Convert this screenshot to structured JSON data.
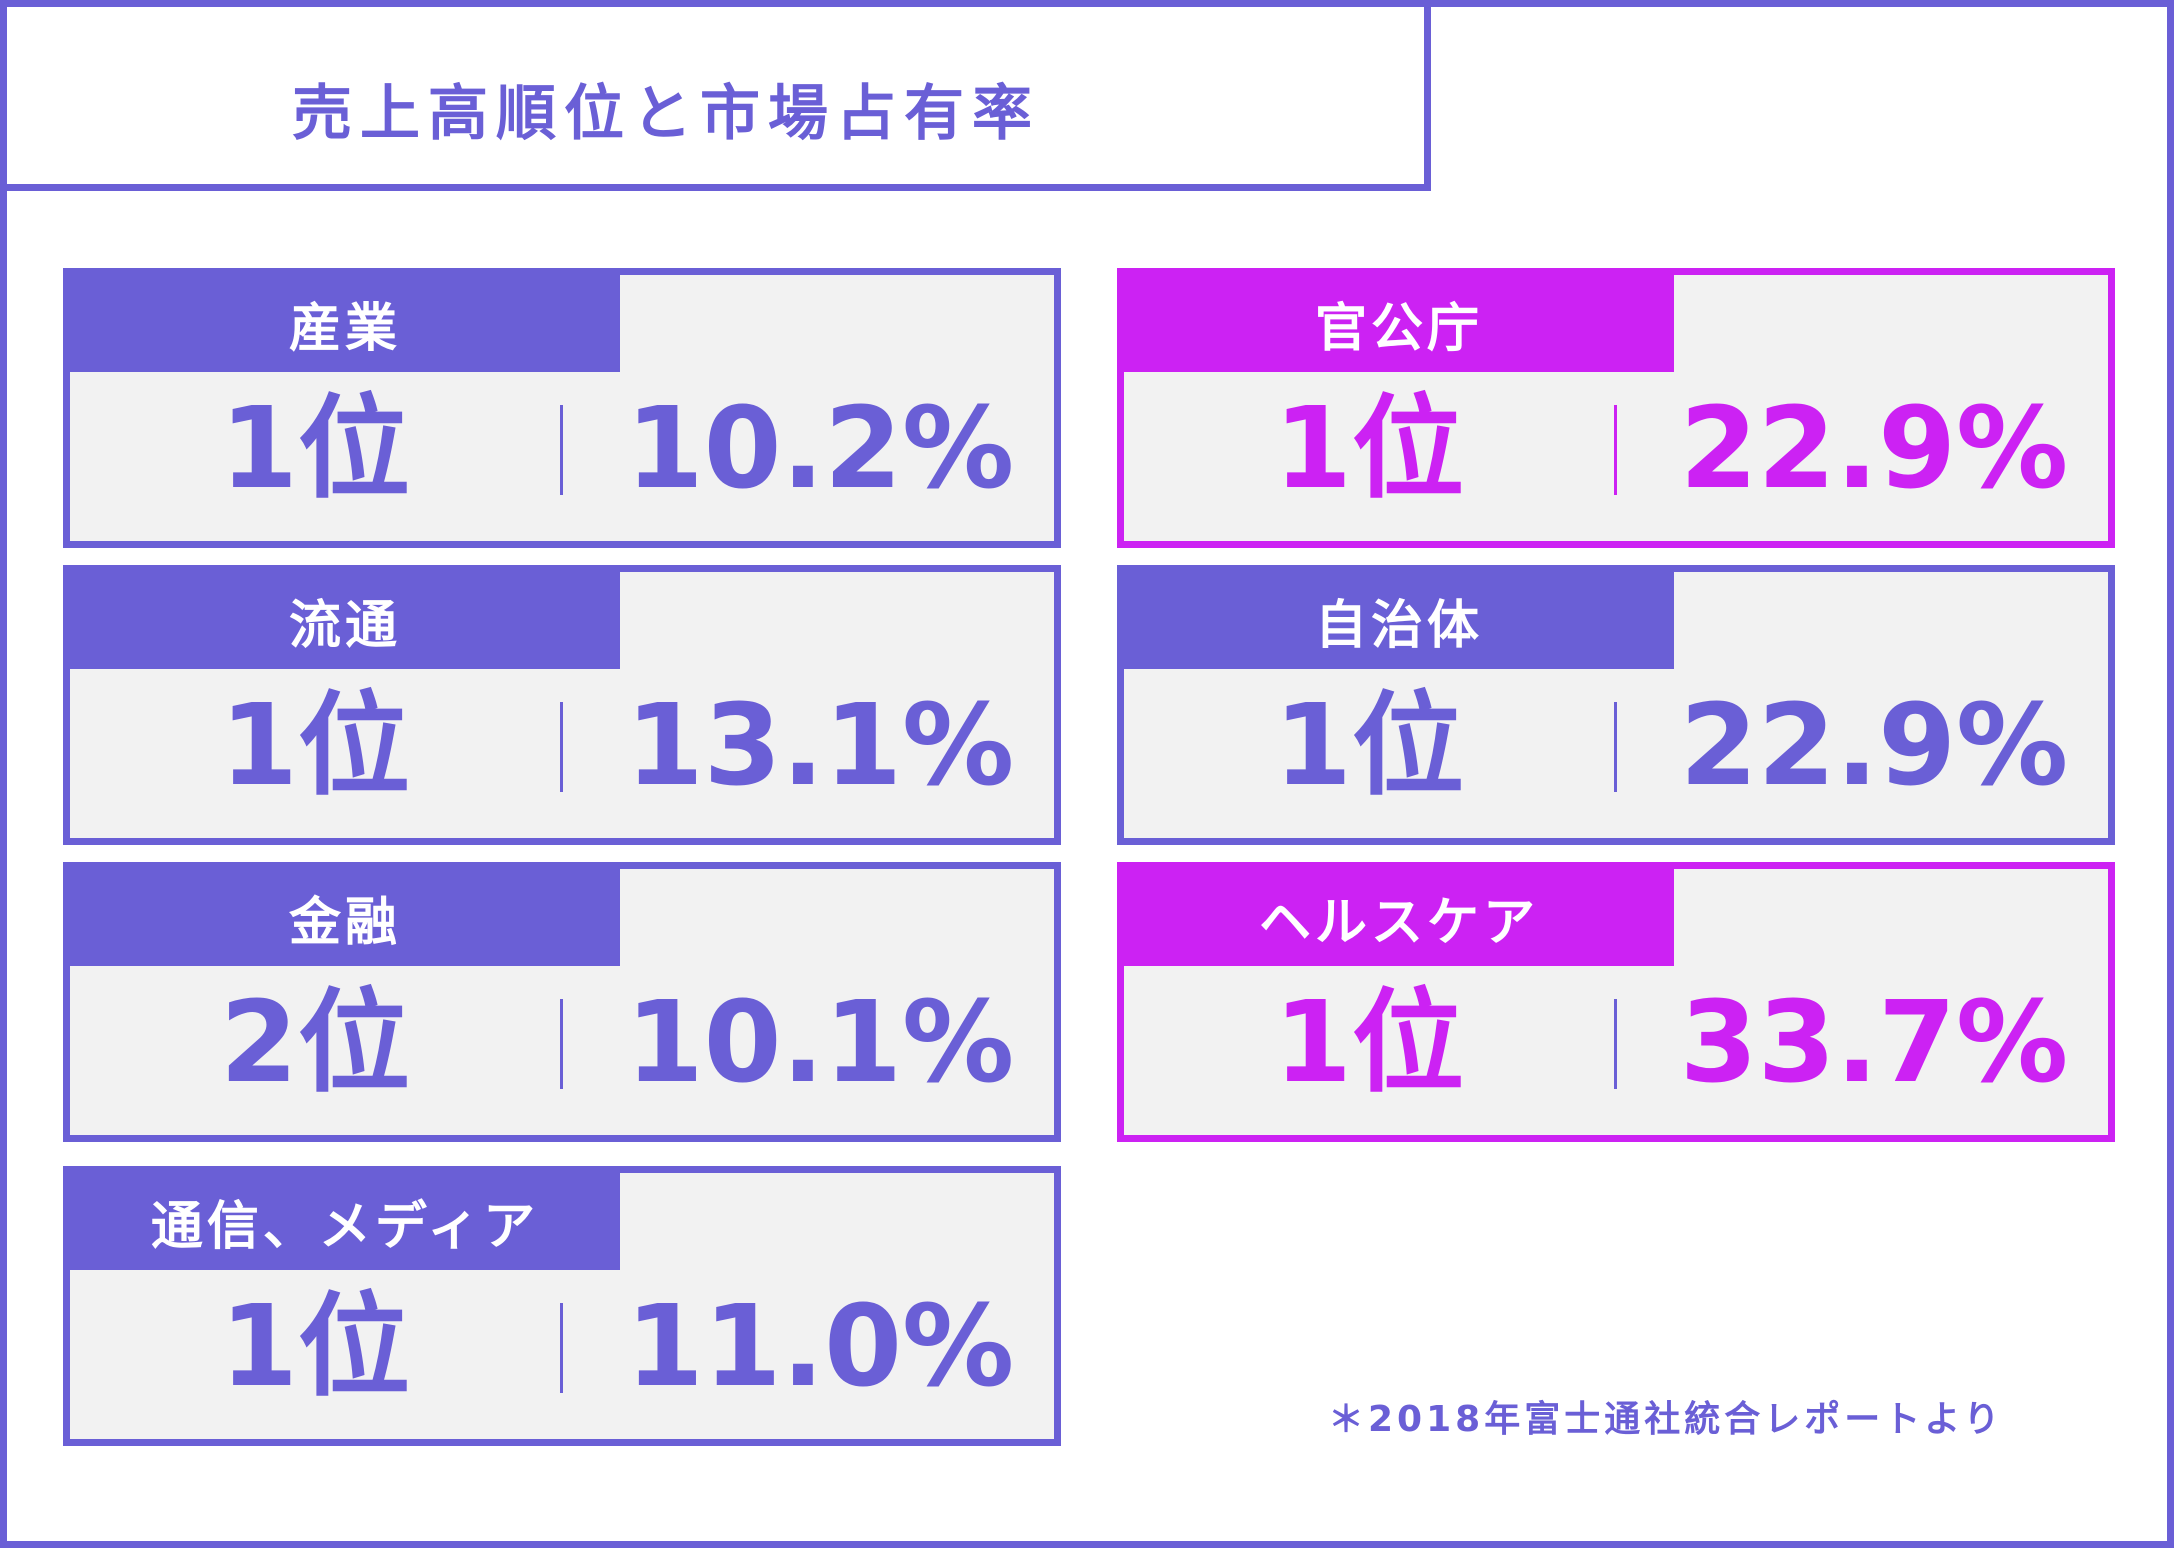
{
  "title": "売上高順位と市場占有率",
  "colors": {
    "primary": "#6a5fd6",
    "accent": "#cc22f3",
    "card_background": "#f2f2f2"
  },
  "cards": [
    {
      "label": "産業",
      "rank": "1位",
      "share": "10.2%",
      "color": "primary"
    },
    {
      "label": "官公庁",
      "rank": "1位",
      "share": "22.9%",
      "color": "accent"
    },
    {
      "label": "流通",
      "rank": "1位",
      "share": "13.1%",
      "color": "primary"
    },
    {
      "label": "自治体",
      "rank": "1位",
      "share": "22.9%",
      "color": "primary"
    },
    {
      "label": "金融",
      "rank": "2位",
      "share": "10.1%",
      "color": "primary"
    },
    {
      "label": "ヘルスケア",
      "rank": "1位",
      "share": "33.7%",
      "color": "accent"
    },
    {
      "label": "通信、メディア",
      "rank": "1位",
      "share": "11.0%",
      "color": "primary"
    }
  ],
  "note": "＊2018年富士通社統合レポートより"
}
